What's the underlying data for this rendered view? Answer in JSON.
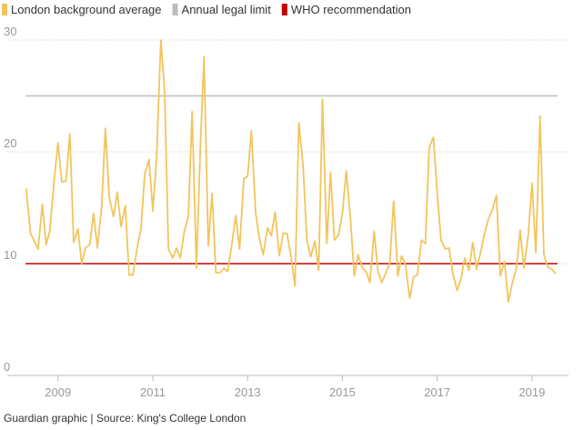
{
  "chart_data": {
    "type": "line",
    "series": [
      {
        "name": "London background average",
        "color": "#f2c55c",
        "x": [
          2008.33,
          2008.42,
          2008.5,
          2008.58,
          2008.67,
          2008.75,
          2008.83,
          2008.92,
          2009,
          2009.08,
          2009.17,
          2009.25,
          2009.33,
          2009.42,
          2009.5,
          2009.58,
          2009.67,
          2009.75,
          2009.83,
          2009.92,
          2010,
          2010.08,
          2010.17,
          2010.25,
          2010.33,
          2010.42,
          2010.5,
          2010.58,
          2010.67,
          2010.75,
          2010.83,
          2010.92,
          2011,
          2011.08,
          2011.17,
          2011.25,
          2011.33,
          2011.42,
          2011.5,
          2011.58,
          2011.67,
          2011.75,
          2011.83,
          2011.92,
          2012,
          2012.08,
          2012.17,
          2012.25,
          2012.33,
          2012.42,
          2012.5,
          2012.58,
          2012.67,
          2012.75,
          2012.83,
          2012.92,
          2013,
          2013.08,
          2013.17,
          2013.25,
          2013.33,
          2013.42,
          2013.5,
          2013.58,
          2013.67,
          2013.75,
          2013.83,
          2013.92,
          2014,
          2014.08,
          2014.17,
          2014.25,
          2014.33,
          2014.42,
          2014.5,
          2014.58,
          2014.67,
          2014.75,
          2014.83,
          2014.92,
          2015,
          2015.08,
          2015.17,
          2015.25,
          2015.33,
          2015.42,
          2015.5,
          2015.58,
          2015.67,
          2015.75,
          2015.83,
          2015.92,
          2016,
          2016.08,
          2016.17,
          2016.25,
          2016.33,
          2016.42,
          2016.5,
          2016.58,
          2016.67,
          2016.75,
          2016.83,
          2016.92,
          2017,
          2017.08,
          2017.17,
          2017.25,
          2017.33,
          2017.42,
          2017.5,
          2017.58,
          2017.67,
          2017.75,
          2017.83,
          2017.92,
          2018,
          2018.08,
          2018.17,
          2018.25,
          2018.33,
          2018.42,
          2018.5,
          2018.58,
          2018.67,
          2018.75,
          2018.83,
          2018.92,
          2019,
          2019.08,
          2019.17,
          2019.25,
          2019.33,
          2019.42,
          2019.5
        ],
        "values": [
          16.7,
          12.7,
          12,
          11.3,
          15.3,
          11.7,
          13,
          17.5,
          20.8,
          17.3,
          17.4,
          21.6,
          11.9,
          13.1,
          10,
          11.4,
          11.7,
          14.5,
          11.4,
          15,
          22.1,
          16,
          14.2,
          16.4,
          13.3,
          15.2,
          9,
          9,
          11.4,
          13.1,
          18,
          19.3,
          14.7,
          19.5,
          30,
          25.4,
          11.3,
          10.5,
          11.4,
          10.5,
          13,
          14.2,
          23.6,
          9.6,
          20,
          28.5,
          11.6,
          16.3,
          9.2,
          9.2,
          9.6,
          9.3,
          11.8,
          14.3,
          11.3,
          17.6,
          17.8,
          21.9,
          14.5,
          12.2,
          10.8,
          13.2,
          12.5,
          14.6,
          10.7,
          12.7,
          12.7,
          10.5,
          8,
          22.6,
          18.8,
          12.1,
          10.6,
          12,
          9.4,
          24.7,
          11.8,
          18.2,
          12.1,
          12.6,
          14.5,
          18.3,
          14,
          8.9,
          10.8,
          9.6,
          9.3,
          8.3,
          12.9,
          9.3,
          8.3,
          9.2,
          10.1,
          15.6,
          8.9,
          10.7,
          9.9,
          6.9,
          8.8,
          9,
          12.1,
          11.8,
          20.4,
          21.3,
          16.3,
          12.1,
          11.3,
          11.4,
          9.1,
          7.6,
          8.6,
          10.5,
          9.4,
          11.9,
          9.5,
          11.1,
          12.7,
          14,
          14.9,
          16.1,
          8.9,
          10.2,
          6.6,
          8.2,
          9.6,
          13,
          9.6,
          12.6,
          17.2,
          11,
          23.2,
          10.8,
          9.7,
          9.5,
          9.1
        ]
      }
    ],
    "reference_lines": [
      {
        "name": "Annual legal limit",
        "value": 25,
        "color": "#bdbdbd"
      },
      {
        "name": "WHO recommendation",
        "value": 10,
        "color": "#c70000"
      }
    ],
    "xlim": [
      2007.93,
      2019.77
    ],
    "xticks": [
      2009,
      2011,
      2013,
      2015,
      2017,
      2019
    ],
    "ylim": [
      0,
      30
    ],
    "yticks": [
      0,
      10,
      20,
      30
    ],
    "grid": true,
    "source": "Guardian graphic | Source: King's College London"
  }
}
